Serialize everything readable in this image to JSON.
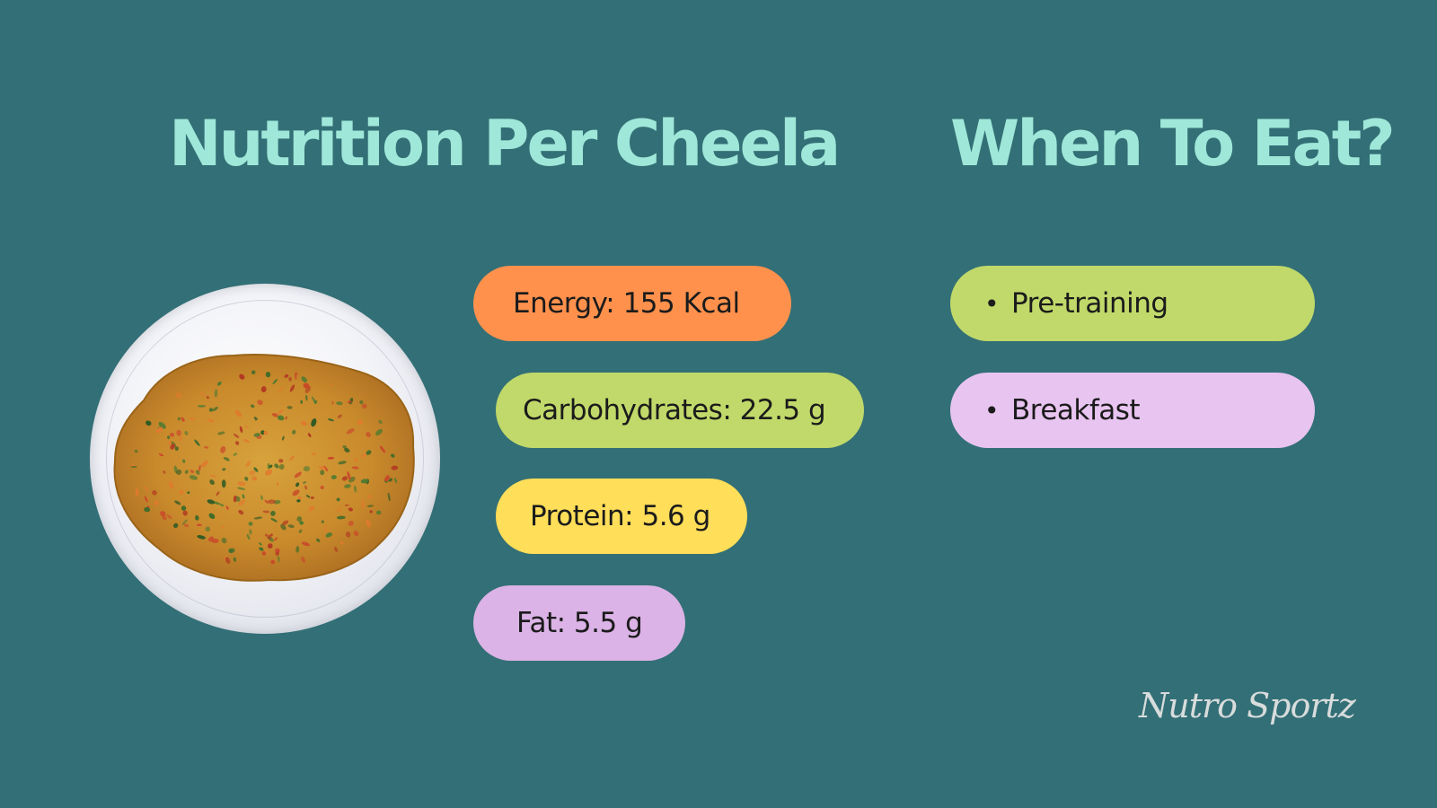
{
  "headings": {
    "nutrition": "Nutrition Per Cheela",
    "when": "When To Eat?"
  },
  "nutrition": {
    "energy": "Energy: 155 Kcal",
    "carbohydrates": "Carbohydrates: 22.5 g",
    "protein": "Protein: 5.6 g",
    "fat": "Fat: 5.5 g"
  },
  "when_to_eat": {
    "bullet": "•",
    "items": [
      "Pre-training",
      "Breakfast"
    ]
  },
  "brand": "Nutro Sportz",
  "colors": {
    "background": "#336f76",
    "heading": "#9fe7d9",
    "energy": "#ff914d",
    "carbohydrates": "#c1d96a",
    "protein": "#ffde59",
    "fat": "#dbb3e6",
    "pretraining": "#c1d96a",
    "breakfast": "#e8c4f0"
  },
  "image": "cheela-on-plate"
}
